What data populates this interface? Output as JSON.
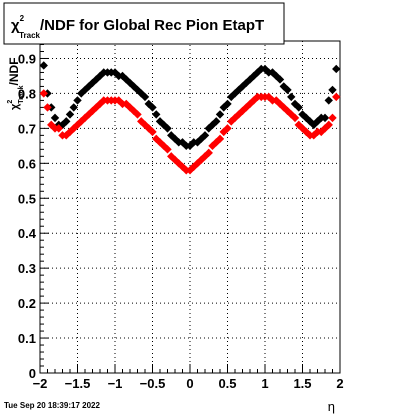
{
  "chart_data": {
    "type": "scatter",
    "title": {
      "chi": "χ",
      "sup": "2",
      "sub": "Track",
      "rest": "/NDF for Global Rec Pion EtapT"
    },
    "xlabel": "η",
    "ylabel": {
      "chi": "χ",
      "sup": "2",
      "sub": "Track",
      "rest": "/NDF"
    },
    "xlim": [
      -2,
      2
    ],
    "ylim": [
      0,
      0.95
    ],
    "xticks": [
      -2,
      -1.5,
      -1,
      -0.5,
      0,
      0.5,
      1,
      1.5,
      2
    ],
    "xtick_labels": [
      "−2",
      "−1.5",
      "−1",
      "−0.5",
      "0",
      "0.5",
      "1",
      "1.5",
      "2"
    ],
    "yticks": [
      0,
      0.1,
      0.2,
      0.3,
      0.4,
      0.5,
      0.6,
      0.7,
      0.8,
      0.9
    ],
    "ytick_labels": [
      "0",
      "0.1",
      "0.2",
      "0.3",
      "0.4",
      "0.5",
      "0.6",
      "0.7",
      "0.8",
      "0.9"
    ],
    "grid": true,
    "series": [
      {
        "color": "#000000",
        "marker": "diamond",
        "x": [
          -1.95,
          -1.9,
          -1.85,
          -1.8,
          -1.75,
          -1.7,
          -1.65,
          -1.6,
          -1.55,
          -1.5,
          -1.45,
          -1.4,
          -1.35,
          -1.3,
          -1.25,
          -1.2,
          -1.15,
          -1.1,
          -1.05,
          -1.0,
          -0.95,
          -0.9,
          -0.85,
          -0.8,
          -0.75,
          -0.7,
          -0.65,
          -0.6,
          -0.55,
          -0.5,
          -0.45,
          -0.4,
          -0.35,
          -0.3,
          -0.25,
          -0.2,
          -0.15,
          -0.1,
          -0.05,
          0.0,
          0.05,
          0.1,
          0.15,
          0.2,
          0.25,
          0.3,
          0.35,
          0.4,
          0.45,
          0.5,
          0.55,
          0.6,
          0.65,
          0.7,
          0.75,
          0.8,
          0.85,
          0.9,
          0.95,
          1.0,
          1.05,
          1.1,
          1.15,
          1.2,
          1.25,
          1.3,
          1.35,
          1.4,
          1.45,
          1.5,
          1.55,
          1.6,
          1.65,
          1.7,
          1.75,
          1.8,
          1.85,
          1.9,
          1.95
        ],
        "y": [
          0.88,
          0.8,
          0.76,
          0.73,
          0.71,
          0.71,
          0.72,
          0.74,
          0.76,
          0.78,
          0.8,
          0.81,
          0.82,
          0.83,
          0.84,
          0.85,
          0.86,
          0.86,
          0.86,
          0.86,
          0.85,
          0.85,
          0.84,
          0.83,
          0.82,
          0.81,
          0.8,
          0.79,
          0.77,
          0.76,
          0.74,
          0.72,
          0.71,
          0.7,
          0.68,
          0.67,
          0.66,
          0.66,
          0.65,
          0.65,
          0.66,
          0.66,
          0.67,
          0.68,
          0.7,
          0.71,
          0.72,
          0.74,
          0.76,
          0.77,
          0.79,
          0.8,
          0.81,
          0.82,
          0.83,
          0.84,
          0.85,
          0.86,
          0.87,
          0.87,
          0.86,
          0.86,
          0.85,
          0.84,
          0.82,
          0.81,
          0.79,
          0.77,
          0.76,
          0.74,
          0.73,
          0.72,
          0.71,
          0.72,
          0.73,
          0.73,
          0.78,
          0.81,
          0.87
        ]
      },
      {
        "color": "#ff0000",
        "marker": "diamond",
        "x": [
          -1.95,
          -1.9,
          -1.85,
          -1.8,
          -1.75,
          -1.7,
          -1.65,
          -1.6,
          -1.55,
          -1.5,
          -1.45,
          -1.4,
          -1.35,
          -1.3,
          -1.25,
          -1.2,
          -1.15,
          -1.1,
          -1.05,
          -1.0,
          -0.95,
          -0.9,
          -0.85,
          -0.8,
          -0.75,
          -0.7,
          -0.65,
          -0.6,
          -0.55,
          -0.5,
          -0.45,
          -0.4,
          -0.35,
          -0.3,
          -0.25,
          -0.2,
          -0.15,
          -0.1,
          -0.05,
          0.0,
          0.05,
          0.1,
          0.15,
          0.2,
          0.25,
          0.3,
          0.35,
          0.4,
          0.45,
          0.5,
          0.55,
          0.6,
          0.65,
          0.7,
          0.75,
          0.8,
          0.85,
          0.9,
          0.95,
          1.0,
          1.05,
          1.1,
          1.15,
          1.2,
          1.25,
          1.3,
          1.35,
          1.4,
          1.45,
          1.5,
          1.55,
          1.6,
          1.65,
          1.7,
          1.75,
          1.8,
          1.85,
          1.9,
          1.95
        ],
        "y": [
          0.8,
          0.76,
          0.71,
          0.7,
          0.7,
          0.68,
          0.68,
          0.69,
          0.7,
          0.71,
          0.72,
          0.73,
          0.74,
          0.75,
          0.76,
          0.77,
          0.78,
          0.78,
          0.78,
          0.78,
          0.78,
          0.77,
          0.77,
          0.76,
          0.75,
          0.74,
          0.72,
          0.71,
          0.7,
          0.69,
          0.67,
          0.66,
          0.65,
          0.64,
          0.62,
          0.61,
          0.6,
          0.59,
          0.58,
          0.58,
          0.59,
          0.6,
          0.61,
          0.62,
          0.63,
          0.65,
          0.66,
          0.67,
          0.69,
          0.7,
          0.72,
          0.73,
          0.74,
          0.75,
          0.76,
          0.77,
          0.78,
          0.79,
          0.79,
          0.79,
          0.79,
          0.78,
          0.78,
          0.77,
          0.76,
          0.75,
          0.74,
          0.73,
          0.71,
          0.7,
          0.69,
          0.68,
          0.68,
          0.69,
          0.69,
          0.7,
          0.71,
          0.73,
          0.79
        ]
      }
    ]
  },
  "footer": {
    "timestamp": "Tue Sep 20 18:39:17 2022"
  }
}
